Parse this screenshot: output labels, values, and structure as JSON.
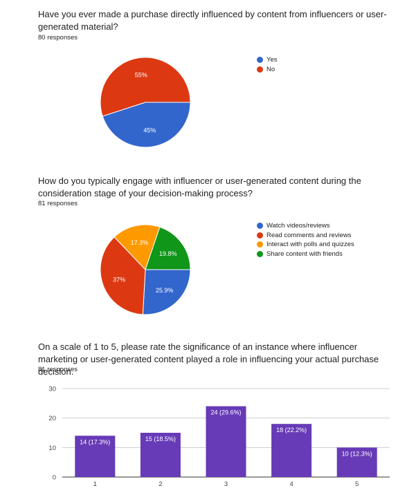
{
  "questions": [
    {
      "title": "Have you ever made a purchase directly influenced by content from influencers or user-generated material?",
      "responses": "80 responses"
    },
    {
      "title": "How do you typically engage with influencer or user-generated content during the consideration stage of your decision-making process?",
      "responses": "81 responses"
    },
    {
      "title": "On a scale of 1 to 5, please rate the significance of an instance where influencer marketing or user-generated content played a role in influencing your actual purchase decision.",
      "responses": "81 responses"
    }
  ],
  "chart_data": [
    {
      "type": "pie",
      "categories": [
        "Yes",
        "No"
      ],
      "values": [
        45,
        55
      ],
      "labels": [
        "45%",
        "55%"
      ],
      "colors": [
        "#3366cc",
        "#dc3912"
      ],
      "legend": "right"
    },
    {
      "type": "pie",
      "categories": [
        "Watch videos/reviews",
        "Read comments and reviews",
        "Interact with polls and quizzes",
        "Share content with friends"
      ],
      "values": [
        25.9,
        37,
        17.3,
        19.8
      ],
      "labels": [
        "25.9%",
        "37%",
        "17.3%",
        "19.8%"
      ],
      "colors": [
        "#3366cc",
        "#dc3912",
        "#ff9900",
        "#109618"
      ],
      "legend": "right"
    },
    {
      "type": "bar",
      "categories": [
        "1",
        "2",
        "3",
        "4",
        "5"
      ],
      "values": [
        14,
        15,
        24,
        18,
        10
      ],
      "labels": [
        "14 (17.3%)",
        "15 (18.5%)",
        "24 (29.6%)",
        "18 (22.2%)",
        "10 (12.3%)"
      ],
      "yticks": [
        "0",
        "10",
        "20",
        "30"
      ],
      "ylim": [
        0,
        30
      ],
      "color": "#673ab7",
      "grid": true
    }
  ]
}
